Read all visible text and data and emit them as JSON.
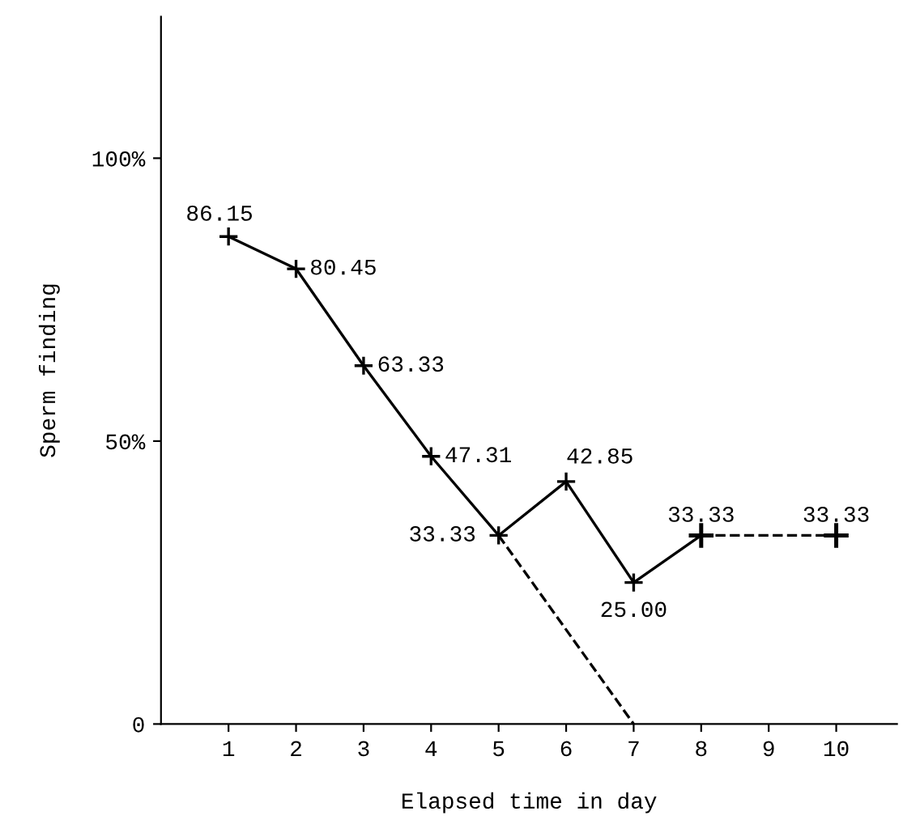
{
  "chart_data": {
    "type": "line",
    "xlabel": "Elapsed time in day",
    "ylabel": "Sperm finding",
    "xlim": [
      0,
      10.9
    ],
    "xticks": [
      1,
      2,
      3,
      4,
      5,
      6,
      7,
      8,
      9,
      10
    ],
    "ylim": [
      0,
      125
    ],
    "yticks": [
      {
        "value": 0,
        "label": "0"
      },
      {
        "value": 50,
        "label": "50%"
      },
      {
        "value": 100,
        "label": "100%"
      }
    ],
    "marker": "cross",
    "grid": false,
    "legend": false,
    "series": [
      {
        "color": "#000000",
        "line_style": "solid",
        "x": [
          1,
          2,
          3,
          4,
          5,
          6,
          7,
          8
        ],
        "values": [
          86.15,
          80.45,
          63.33,
          47.31,
          33.33,
          42.85,
          25.0,
          33.33
        ],
        "value_labels": [
          "86.15",
          "80.45",
          "63.33",
          "47.31",
          "33.33",
          "42.85",
          "25.00",
          "33.33"
        ]
      },
      {
        "color": "#000000",
        "line_style": "dashed",
        "x": [
          8,
          10
        ],
        "values": [
          33.33,
          33.33
        ],
        "value_labels": [
          null,
          "33.33"
        ]
      },
      {
        "color": "#000000",
        "line_style": "dashed",
        "marker": "none",
        "x": [
          5,
          7
        ],
        "values": [
          33.33,
          0
        ],
        "value_labels": [
          null,
          null
        ]
      }
    ]
  }
}
